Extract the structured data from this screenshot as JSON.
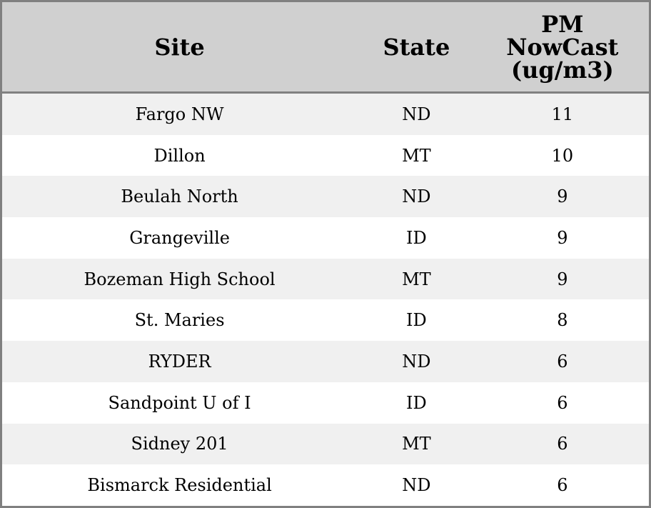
{
  "chart_data": {
    "type": "table",
    "columns": [
      "Site",
      "State",
      "PM NowCast (ug/m3)"
    ],
    "header_lines": [
      [
        "Site"
      ],
      [
        "State"
      ],
      [
        "PM",
        "NowCast",
        "(ug/m3)"
      ]
    ],
    "rows": [
      [
        "Fargo NW",
        "ND",
        "11"
      ],
      [
        "Dillon",
        "MT",
        "10"
      ],
      [
        "Beulah North",
        "ND",
        "9"
      ],
      [
        "Grangeville",
        "ID",
        "9"
      ],
      [
        "Bozeman High School",
        "MT",
        "9"
      ],
      [
        "St. Maries",
        "ID",
        "8"
      ],
      [
        "RYDER",
        "ND",
        "6"
      ],
      [
        "Sandpoint U of I",
        "ID",
        "6"
      ],
      [
        "Sidney 201",
        "MT",
        "6"
      ],
      [
        "Bismarck Residential",
        "ND",
        "6"
      ]
    ],
    "colors": {
      "header_bg": "#d0d0d0",
      "stripe_bg": "#f0f0f0",
      "border": "#808080"
    }
  }
}
